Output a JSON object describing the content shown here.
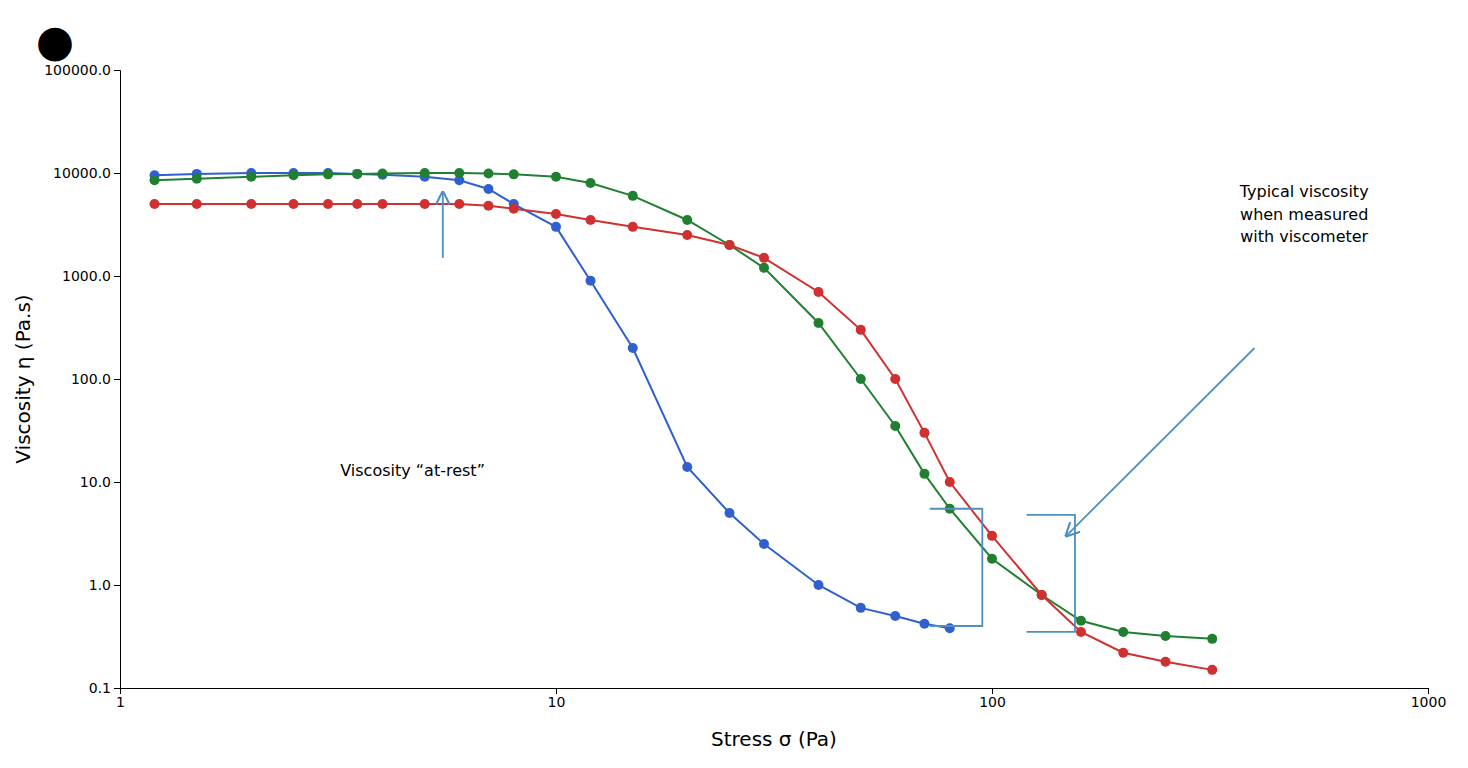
{
  "chart_data": {
    "type": "line",
    "log": true,
    "grid": false,
    "marker": "circle",
    "xlabel": "Stress σ (Pa)",
    "ylabel": "Viscosity η (Pa.s)",
    "xlim": [
      1,
      1000
    ],
    "ylim": [
      0.1,
      100000
    ],
    "xticks": [
      1,
      10,
      100,
      1000
    ],
    "yticks": [
      0.1,
      {
        "value": 1,
        "label": "1.0"
      },
      {
        "value": 10,
        "label": "10.0"
      },
      {
        "value": 100,
        "label": "100.0"
      },
      {
        "value": 1000,
        "label": "1000.0"
      },
      {
        "value": 10000,
        "label": "10000.0"
      },
      {
        "value": 100000,
        "label": "100000.0"
      }
    ],
    "series": [
      {
        "color": "#3060d0",
        "x": [
          1.2,
          1.5,
          2.0,
          2.5,
          3.0,
          3.5,
          4.0,
          5.0,
          6.0,
          7.0,
          8.0,
          10.0,
          12.0,
          15.0,
          20.0,
          25.0,
          30.0,
          40.0,
          50.0,
          60.0,
          70.0,
          80.0
        ],
        "values": [
          9500,
          9800,
          10000,
          10000,
          10000,
          9800,
          9600,
          9200,
          8500,
          7000,
          5000,
          3000,
          900,
          200,
          14,
          5,
          2.5,
          1.0,
          0.6,
          0.5,
          0.42,
          0.38
        ]
      },
      {
        "color": "#208030",
        "x": [
          1.2,
          1.5,
          2.0,
          2.5,
          3.0,
          3.5,
          4.0,
          5.0,
          6.0,
          7.0,
          8.0,
          10.0,
          12.0,
          15.0,
          20.0,
          25.0,
          30.0,
          40.0,
          50.0,
          60.0,
          70.0,
          80.0,
          100.0,
          130.0,
          160.0,
          200.0,
          250.0,
          320.0
        ],
        "values": [
          8500,
          8800,
          9200,
          9500,
          9700,
          9800,
          9900,
          10000,
          10000,
          9900,
          9700,
          9200,
          8000,
          6000,
          3500,
          2000,
          1200,
          350,
          100,
          35,
          12,
          5.5,
          1.8,
          0.8,
          0.45,
          0.35,
          0.32,
          0.3
        ]
      },
      {
        "color": "#d03030",
        "x": [
          1.2,
          1.5,
          2.0,
          2.5,
          3.0,
          3.5,
          4.0,
          5.0,
          6.0,
          7.0,
          8.0,
          10.0,
          12.0,
          15.0,
          20.0,
          25.0,
          30.0,
          40.0,
          50.0,
          60.0,
          70.0,
          80.0,
          100.0,
          130.0,
          160.0,
          200.0,
          250.0,
          320.0
        ],
        "values": [
          5000,
          5000,
          5000,
          5000,
          5000,
          5000,
          5000,
          5000,
          5000,
          4800,
          4500,
          4000,
          3500,
          3000,
          2500,
          2000,
          1500,
          700,
          300,
          100,
          30,
          10,
          3.0,
          0.8,
          0.35,
          0.22,
          0.18,
          0.15
        ]
      }
    ],
    "annotations": [
      "●",
      "Viscosity “at-rest”",
      "Typical viscosity\nwhen measured\nwith viscometer"
    ]
  }
}
